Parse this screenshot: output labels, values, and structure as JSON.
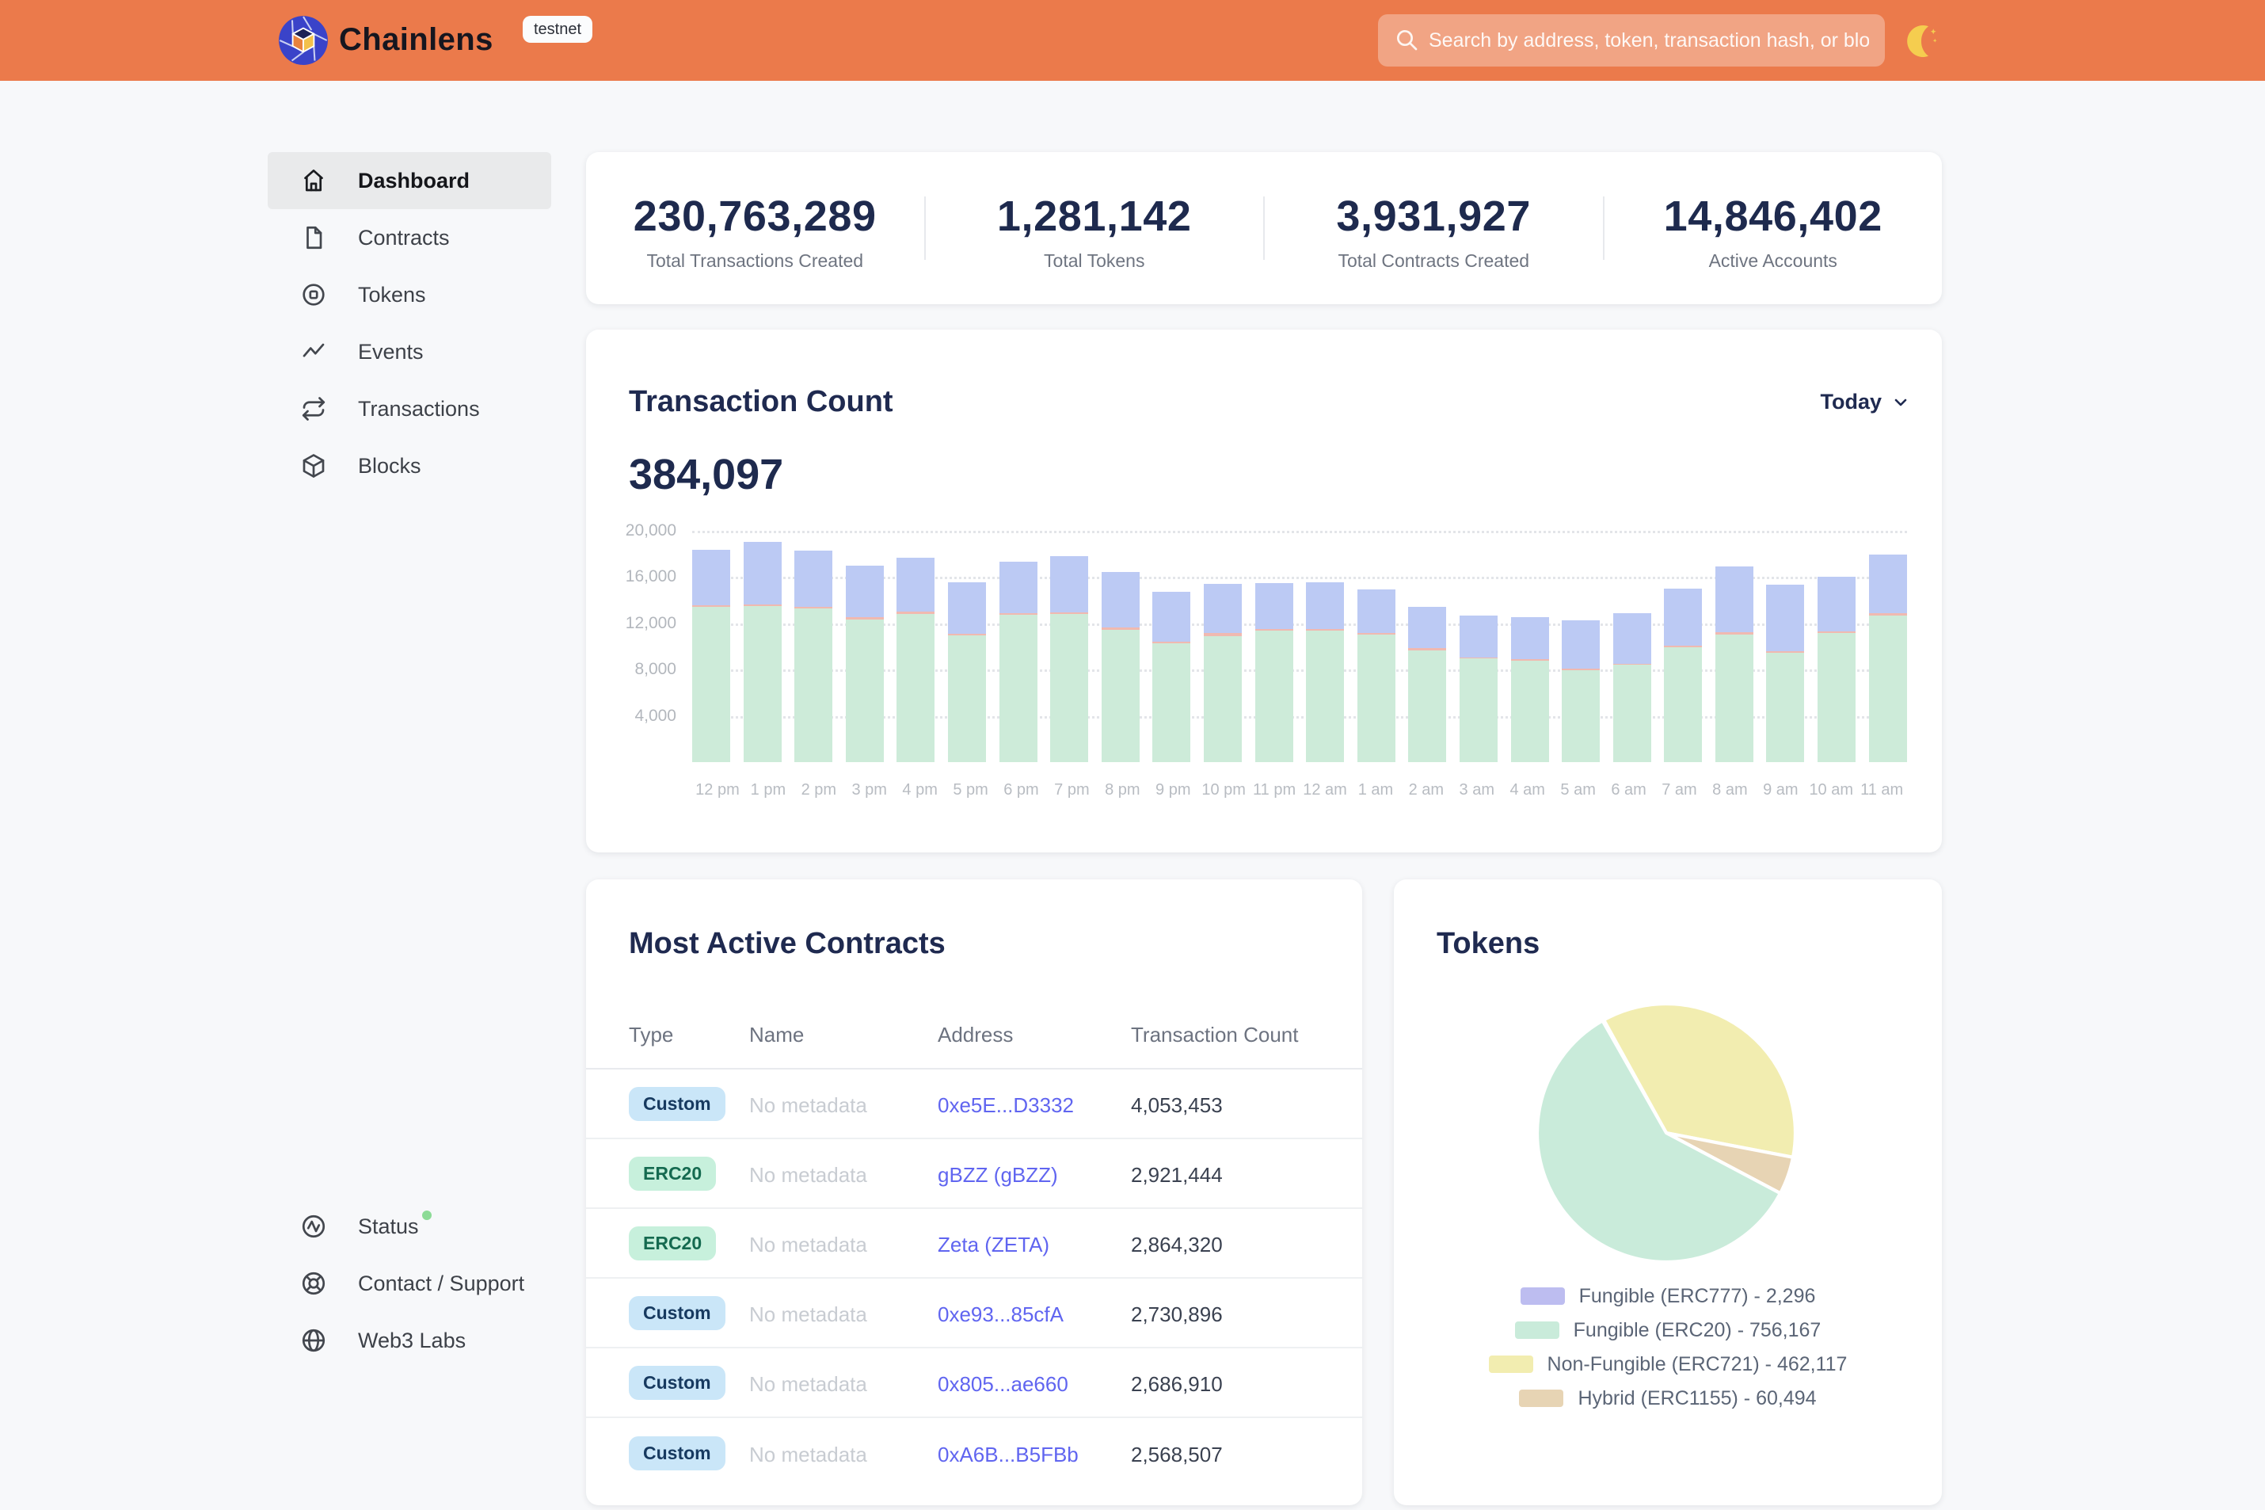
{
  "header": {
    "brand": "Chainlens",
    "env_badge": "testnet",
    "search_placeholder": "Search by address, token, transaction hash, or block number"
  },
  "sidebar": {
    "items": [
      {
        "label": "Dashboard",
        "icon": "home-icon",
        "active": true
      },
      {
        "label": "Contracts",
        "icon": "contract-icon",
        "active": false
      },
      {
        "label": "Tokens",
        "icon": "token-icon",
        "active": false
      },
      {
        "label": "Events",
        "icon": "events-icon",
        "active": false
      },
      {
        "label": "Transactions",
        "icon": "transactions-icon",
        "active": false
      },
      {
        "label": "Blocks",
        "icon": "blocks-icon",
        "active": false
      }
    ],
    "footer_items": [
      {
        "label": "Status",
        "icon": "status-icon",
        "status_dot": true,
        "status_dot_color": "#8cdb96"
      },
      {
        "label": "Contact / Support",
        "icon": "support-icon",
        "status_dot": false
      },
      {
        "label": "Web3 Labs",
        "icon": "globe-icon",
        "status_dot": false
      }
    ]
  },
  "stats": {
    "items": [
      {
        "value": "230,763,289",
        "label": "Total Transactions Created"
      },
      {
        "value": "1,281,142",
        "label": "Total Tokens"
      },
      {
        "value": "3,931,927",
        "label": "Total Contracts Created"
      },
      {
        "value": "14,846,402",
        "label": "Active Accounts"
      }
    ]
  },
  "tx_card": {
    "title": "Transaction Count",
    "range": "Today",
    "value": "384,097"
  },
  "contracts_card": {
    "title": "Most Active Contracts",
    "columns": [
      "Type",
      "Name",
      "Address",
      "Transaction Count"
    ],
    "rows": [
      {
        "type": "Custom",
        "badge": "blue",
        "name": "No metadata",
        "address": "0xe5E...D3332",
        "count": "4,053,453"
      },
      {
        "type": "ERC20",
        "badge": "green",
        "name": "No metadata",
        "address": "gBZZ (gBZZ)",
        "count": "2,921,444"
      },
      {
        "type": "ERC20",
        "badge": "green",
        "name": "No metadata",
        "address": "Zeta (ZETA)",
        "count": "2,864,320"
      },
      {
        "type": "Custom",
        "badge": "blue",
        "name": "No metadata",
        "address": "0xe93...85cfA",
        "count": "2,730,896"
      },
      {
        "type": "Custom",
        "badge": "blue",
        "name": "No metadata",
        "address": "0x805...ae660",
        "count": "2,686,910"
      },
      {
        "type": "Custom",
        "badge": "blue",
        "name": "No metadata",
        "address": "0xA6B...B5FBb",
        "count": "2,568,507"
      }
    ]
  },
  "tokens_card": {
    "title": "Tokens"
  },
  "chart_data": [
    {
      "type": "bar",
      "stacked": true,
      "title": "Transaction Count",
      "xlabel": "",
      "ylabel": "",
      "ylim": [
        0,
        20000
      ],
      "yticks": [
        {
          "label": "20,000",
          "value": 20000
        },
        {
          "label": "16,000",
          "value": 16000
        },
        {
          "label": "12,000",
          "value": 12000
        },
        {
          "label": "8,000",
          "value": 8000
        },
        {
          "label": "4,000",
          "value": 4000
        }
      ],
      "grid": "horizontal-dotted",
      "legend_position": "none",
      "categories": [
        "12 pm",
        "1 pm",
        "2 pm",
        "3 pm",
        "4 pm",
        "5 pm",
        "6 pm",
        "7 pm",
        "8 pm",
        "9 pm",
        "10 pm",
        "11 pm",
        "12 am",
        "1 am",
        "2 am",
        "3 am",
        "4 am",
        "5 am",
        "6 am",
        "7 am",
        "8 am",
        "9 am",
        "10 am",
        "11 am"
      ],
      "series": [
        {
          "name": "segment-green",
          "color": "#cdebd9",
          "values": [
            13400,
            13500,
            13300,
            12350,
            12800,
            10950,
            12750,
            12800,
            11450,
            10250,
            10900,
            11350,
            11350,
            11000,
            9650,
            8950,
            8800,
            7950,
            8400,
            9950,
            11050,
            9450,
            11150,
            12700
          ]
        },
        {
          "name": "segment-pink",
          "color": "#f0b9b0",
          "values": [
            150,
            150,
            150,
            150,
            200,
            150,
            150,
            150,
            200,
            150,
            250,
            130,
            130,
            150,
            200,
            130,
            100,
            150,
            100,
            130,
            150,
            150,
            130,
            150
          ]
        },
        {
          "name": "segment-blue",
          "color": "#bccaf4",
          "values": [
            4800,
            5350,
            4850,
            4500,
            4700,
            4450,
            4400,
            4850,
            4750,
            4300,
            4250,
            4020,
            4070,
            3750,
            3550,
            3620,
            3650,
            4150,
            4400,
            4920,
            5700,
            5750,
            4720,
            5100
          ]
        }
      ]
    },
    {
      "type": "pie",
      "title": "Tokens",
      "labels": [
        "Fungible (ERC777)",
        "Fungible (ERC20)",
        "Non-Fungible (ERC721)",
        "Hybrid (ERC1155)"
      ],
      "values": [
        2296,
        756167,
        462117,
        60494
      ],
      "colors": [
        "#bdbdf0",
        "#c9ebda",
        "#f2edb0",
        "#e7d4b4"
      ],
      "legend": [
        {
          "label": "Fungible (ERC777) - 2,296",
          "color": "#bdbdf0"
        },
        {
          "label": "Fungible (ERC20) - 756,167",
          "color": "#c9ebda"
        },
        {
          "label": "Non-Fungible (ERC721) - 462,117",
          "color": "#f2edb0"
        },
        {
          "label": "Hybrid (ERC1155) - 60,494",
          "color": "#e7d4b4"
        }
      ],
      "legend_position": "bottom",
      "rotation_deg": -29.6,
      "draw_order": [
        0,
        2,
        3,
        1
      ]
    }
  ]
}
